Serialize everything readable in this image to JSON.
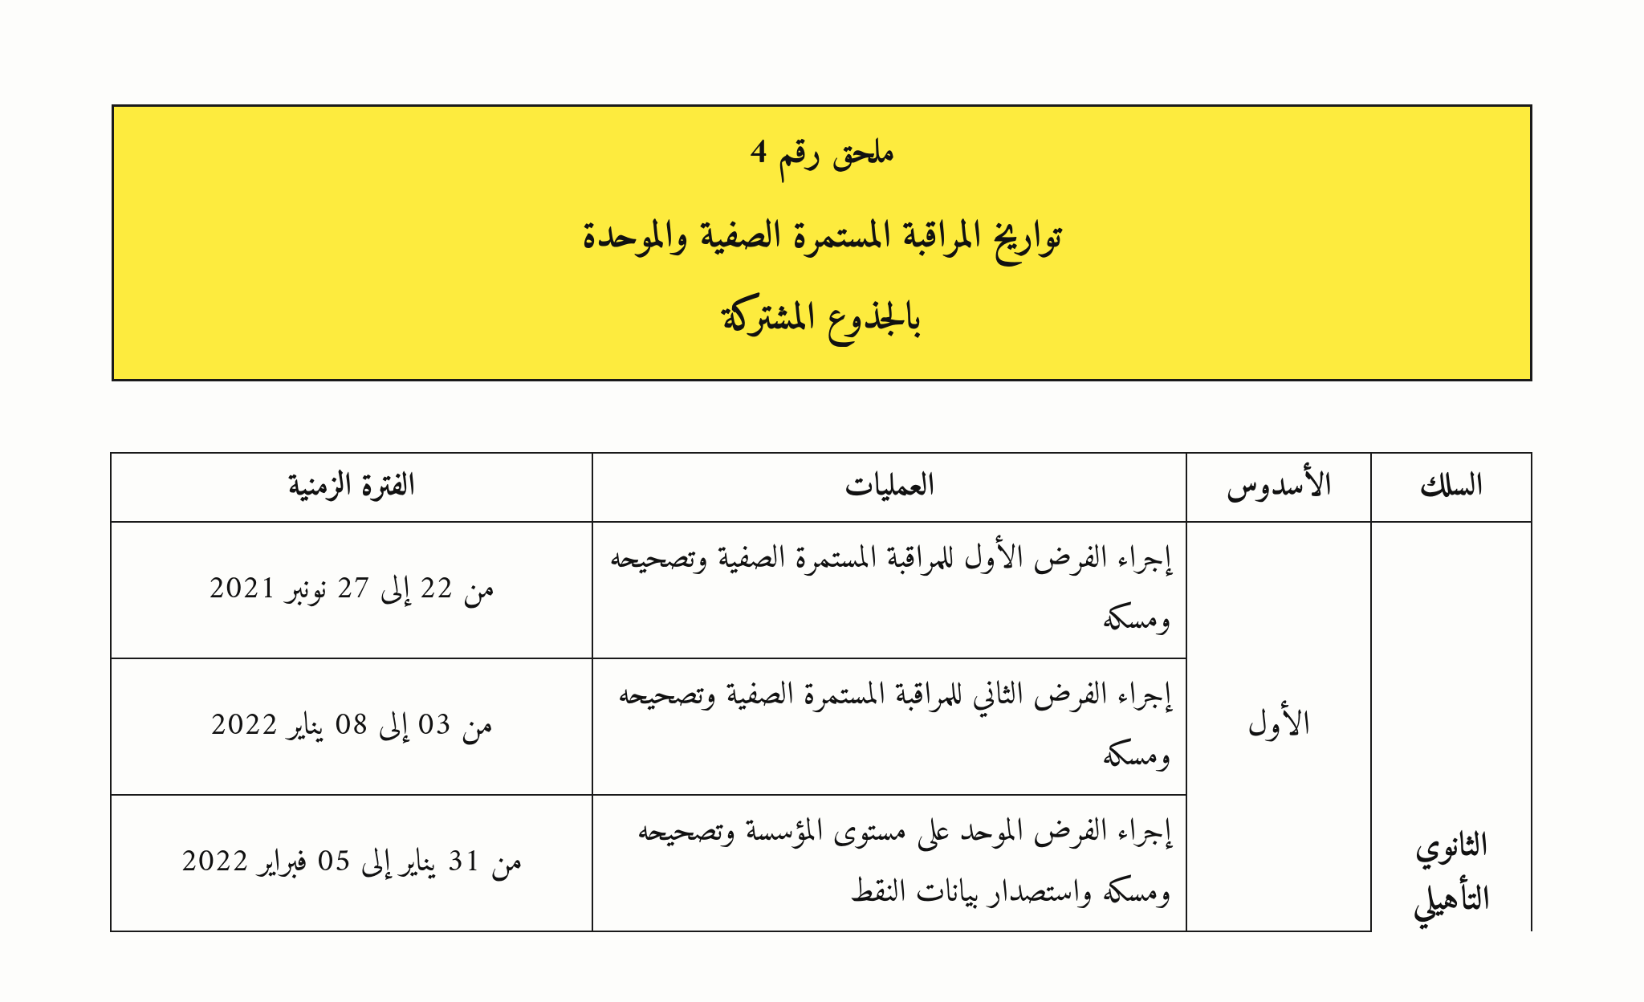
{
  "title": {
    "line1": "ملحق رقم 4",
    "line2": "تواريخ المراقبة المستمرة الصفية والموحدة",
    "line3": "بالجذوع المشتركة"
  },
  "table": {
    "headers": {
      "silk": "السلك",
      "semester": "الأسدوس",
      "operations": "العمليات",
      "period": "الفترة الزمنية"
    },
    "silk_label_line1": "الثانوي",
    "silk_label_line2": "التأهيلي",
    "semester_label": "الأول",
    "rows": [
      {
        "operation": "إجراء الفرض الأول للمراقبة المستمرة الصفية وتصحيحه ومسكه",
        "period": "من 22 إلى 27 نونبر 2021"
      },
      {
        "operation": "إجراء الفرض الثاني للمراقبة المستمرة الصفية وتصحيحه ومسكه",
        "period": "من 03 إلى 08 يناير 2022"
      },
      {
        "operation": "إجراء الفرض الموحد على مستوى المؤسسة وتصحيحه ومسكه واستصدار بيانات النقط",
        "period": "من 31 يناير إلى 05 فبراير 2022"
      }
    ]
  },
  "colors": {
    "title_bg": "#fdeb3e",
    "border": "#1a1a1a",
    "page_bg": "#fdfdfb",
    "text": "#111111"
  }
}
